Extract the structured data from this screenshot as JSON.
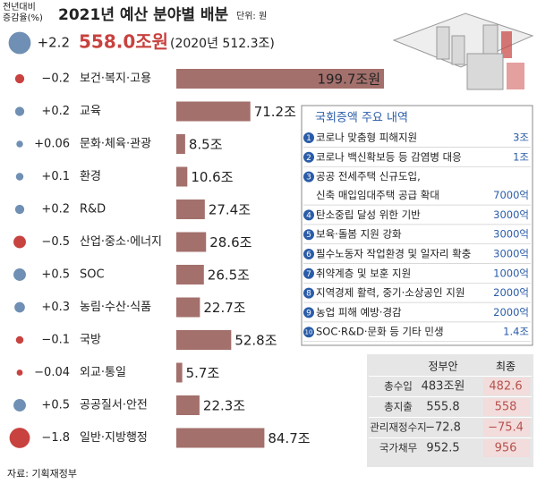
{
  "chart_data": {
    "type": "bar",
    "title": "2021년 예산 분야별 배분",
    "unit": "단위: 원",
    "change_axis_label": [
      "전년대비",
      "증감율(%)"
    ],
    "total": {
      "change": 2.2,
      "change_label": "+2.2",
      "value_label": "558.0조원",
      "previous": "(2020년 512.3조)"
    },
    "categories": [
      "보건·복지·고용",
      "교육",
      "문화·체육·관광",
      "환경",
      "R&D",
      "산업·중소·에너지",
      "SOC",
      "농림·수산·식품",
      "국방",
      "외교·통일",
      "공공질서·안전",
      "일반·지방행정"
    ],
    "values": [
      199.7,
      71.2,
      8.5,
      10.6,
      27.4,
      28.6,
      26.5,
      22.7,
      52.8,
      5.7,
      22.3,
      84.7
    ],
    "value_labels": [
      "199.7조원",
      "71.2조",
      "8.5조",
      "10.6조",
      "27.4조",
      "28.6조",
      "26.5조",
      "22.7조",
      "52.8조",
      "5.7조",
      "22.3조",
      "84.7조"
    ],
    "changes": [
      -0.2,
      0.2,
      0.06,
      0.1,
      0.2,
      -0.5,
      0.5,
      0.3,
      -0.1,
      -0.04,
      0.5,
      -1.8
    ],
    "change_labels": [
      "−0.2",
      "+0.2",
      "+0.06",
      "+0.1",
      "+0.2",
      "−0.5",
      "+0.5",
      "+0.3",
      "−0.1",
      "−0.04",
      "+0.5",
      "−1.8"
    ],
    "color": "#a3706c",
    "positive_color": "#6f8fb4",
    "negative_color": "#c8423f",
    "panel": {
      "title": "국회증액 주요 내역",
      "items": [
        {
          "number": "1",
          "lines": [
            "코로나 맞춤형 피해지원"
          ],
          "amount": "3조"
        },
        {
          "number": "2",
          "lines": [
            "코로나 백신확보등 등 감염병 대응"
          ],
          "amount": "1조"
        },
        {
          "number": "3",
          "lines": [
            "공공 전세주택 신규도입,",
            "신축 매입임대주택 공급 확대"
          ],
          "amount": "7000억"
        },
        {
          "number": "4",
          "lines": [
            "탄소중립 달성 위한 기반"
          ],
          "amount": "3000억"
        },
        {
          "number": "5",
          "lines": [
            "보육·돌봄 지원 강화"
          ],
          "amount": "3000억"
        },
        {
          "number": "6",
          "lines": [
            "필수노동자 작업환경 및 일자리 확충"
          ],
          "amount": "3000억"
        },
        {
          "number": "7",
          "lines": [
            "취약계층 및 보훈 지원"
          ],
          "amount": "1000억"
        },
        {
          "number": "8",
          "lines": [
            "지역경제 활력, 중기·소상공인 지원"
          ],
          "amount": "2000억"
        },
        {
          "number": "9",
          "lines": [
            "농업 피해 예방·경감"
          ],
          "amount": "2000억"
        },
        {
          "number": "10",
          "lines": [
            "SOC·R&D·문화 등 기타 민생"
          ],
          "amount": "1.4조"
        }
      ]
    },
    "table": {
      "header": [
        "정부안",
        "최종"
      ],
      "rows": [
        [
          "총수입",
          "483조원",
          "482.6"
        ],
        [
          "총지출",
          "555.8",
          "558"
        ],
        [
          "관리재정수지",
          "−72.8",
          "−75.4"
        ],
        [
          "국가채무",
          "952.5",
          "956"
        ]
      ]
    },
    "source": "자료: 기획재정부"
  }
}
